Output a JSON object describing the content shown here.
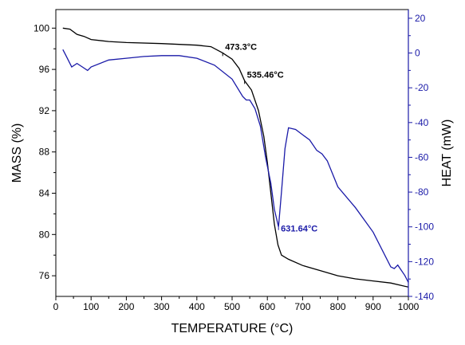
{
  "chart_data": {
    "type": "line",
    "xlabel": "TEMPERATURE (°C)",
    "ylabel_left": "MASS (%)",
    "ylabel_right": "HEAT (mW)",
    "xlim": [
      0,
      1000
    ],
    "ylim_left": [
      74,
      101.8
    ],
    "ylim_right": [
      -140,
      25
    ],
    "x_ticks": [
      0,
      100,
      200,
      300,
      400,
      500,
      600,
      700,
      800,
      900,
      1000
    ],
    "y_left_ticks": [
      76,
      80,
      84,
      88,
      92,
      96,
      100
    ],
    "y_right_ticks": [
      -140,
      -120,
      -100,
      -80,
      -60,
      -40,
      -20,
      0,
      20
    ],
    "grid": false,
    "colors": {
      "mass": "#000000",
      "heat": "#1a1aa8",
      "right_axis": "#1a1aa8"
    },
    "series": [
      {
        "axis": "left",
        "color": "#000000",
        "points": [
          [
            20,
            100.0
          ],
          [
            40,
            99.9
          ],
          [
            60,
            99.4
          ],
          [
            80,
            99.2
          ],
          [
            100,
            98.9
          ],
          [
            150,
            98.7
          ],
          [
            200,
            98.6
          ],
          [
            300,
            98.5
          ],
          [
            400,
            98.35
          ],
          [
            440,
            98.2
          ],
          [
            473.3,
            97.6
          ],
          [
            500,
            97.0
          ],
          [
            520,
            96.1
          ],
          [
            535.46,
            94.9
          ],
          [
            555,
            94.0
          ],
          [
            575,
            92.0
          ],
          [
            590,
            89.5
          ],
          [
            600,
            87.0
          ],
          [
            610,
            84.0
          ],
          [
            620,
            81.0
          ],
          [
            630,
            79.0
          ],
          [
            640,
            78.0
          ],
          [
            660,
            77.6
          ],
          [
            700,
            77.0
          ],
          [
            750,
            76.5
          ],
          [
            800,
            76.0
          ],
          [
            850,
            75.7
          ],
          [
            900,
            75.5
          ],
          [
            950,
            75.3
          ],
          [
            1000,
            74.9
          ]
        ]
      },
      {
        "axis": "right",
        "color": "#1a1aa8",
        "points": [
          [
            20,
            2
          ],
          [
            30,
            -2
          ],
          [
            45,
            -8
          ],
          [
            60,
            -6
          ],
          [
            75,
            -8
          ],
          [
            90,
            -10
          ],
          [
            100,
            -8
          ],
          [
            150,
            -4
          ],
          [
            200,
            -3
          ],
          [
            250,
            -2
          ],
          [
            300,
            -1.5
          ],
          [
            350,
            -1.5
          ],
          [
            400,
            -3
          ],
          [
            450,
            -7
          ],
          [
            500,
            -15
          ],
          [
            530,
            -25
          ],
          [
            540,
            -27
          ],
          [
            550,
            -27
          ],
          [
            565,
            -32
          ],
          [
            580,
            -42
          ],
          [
            595,
            -60
          ],
          [
            610,
            -75
          ],
          [
            620,
            -90
          ],
          [
            631.64,
            -100
          ],
          [
            640,
            -80
          ],
          [
            650,
            -55
          ],
          [
            660,
            -43
          ],
          [
            680,
            -44
          ],
          [
            700,
            -47
          ],
          [
            720,
            -50
          ],
          [
            740,
            -56
          ],
          [
            755,
            -58
          ],
          [
            770,
            -62
          ],
          [
            800,
            -77
          ],
          [
            850,
            -89
          ],
          [
            900,
            -103
          ],
          [
            950,
            -123
          ],
          [
            960,
            -124
          ],
          [
            970,
            -122
          ],
          [
            990,
            -128
          ],
          [
            1000,
            -132
          ]
        ]
      }
    ],
    "annotations": [
      {
        "text": "473.3°C",
        "x": 473.3,
        "y": 97.6,
        "axis": "left",
        "color": "#000000"
      },
      {
        "text": "535.46°C",
        "x": 535.46,
        "y": 94.9,
        "axis": "left",
        "color": "#000000"
      },
      {
        "text": "631.64°C",
        "x": 631.64,
        "y": -100,
        "axis": "right",
        "color": "#1a1aa8"
      }
    ]
  }
}
